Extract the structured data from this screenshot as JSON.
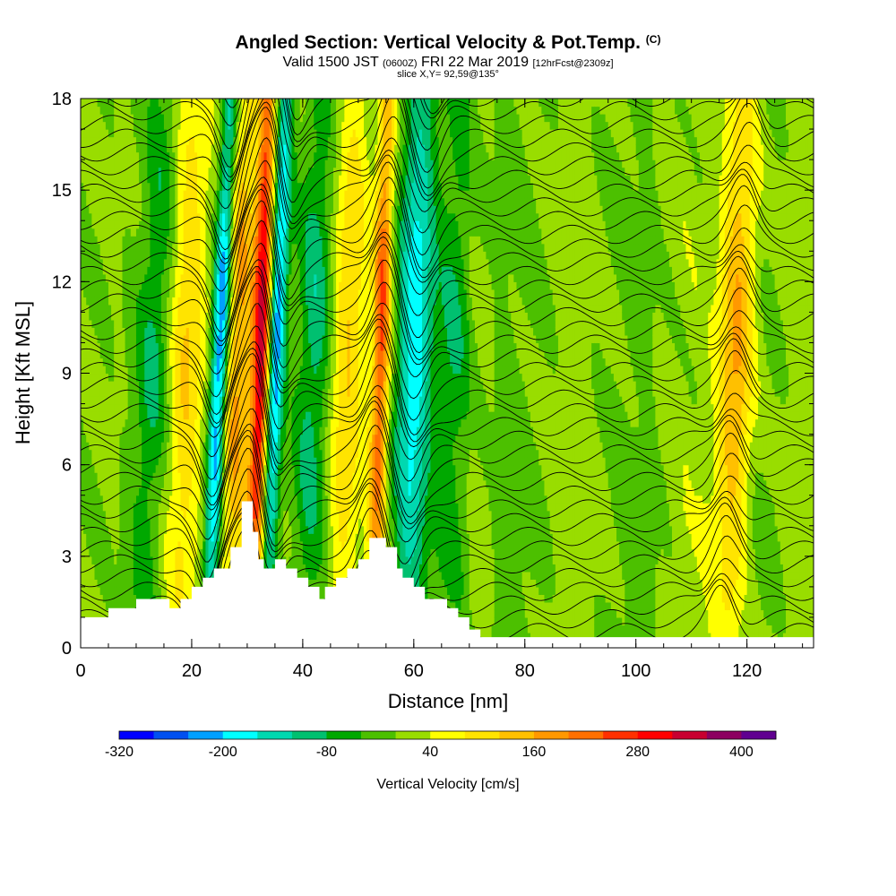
{
  "header": {
    "title_main": "Angled Section: Vertical Velocity & Pot.Temp.",
    "title_mark": "(C)",
    "valid_prefix": "Valid 1500 JST",
    "valid_utc": "(0600Z)",
    "valid_date": "FRI 22 Mar 2019",
    "forecast_note": "[12hrFcst@2309z]",
    "slice_info": "slice X,Y= 92,59@135°"
  },
  "chart_data": {
    "type": "heatmap",
    "title": "Angled Section: Vertical Velocity & Pot.Temp.",
    "xlabel": "Distance [nm]",
    "ylabel": "Height [Kft MSL]",
    "xlim": [
      0,
      132
    ],
    "ylim": [
      0,
      18
    ],
    "x_ticks": [
      0,
      20,
      40,
      60,
      80,
      100,
      120
    ],
    "y_ticks": [
      0,
      3,
      6,
      9,
      12,
      15,
      18
    ],
    "x_minor_step": 5,
    "y_minor_step": 1,
    "colorbar": {
      "title": "Vertical Velocity [cm/s]",
      "tick_labels": [
        -320,
        -200,
        -80,
        40,
        160,
        280,
        400
      ],
      "boundaries": [
        -320,
        -280,
        -240,
        -200,
        -160,
        -120,
        -80,
        -40,
        0,
        40,
        80,
        120,
        160,
        200,
        240,
        280,
        320,
        360,
        400,
        440
      ],
      "colors": [
        "#0000ff",
        "#0050f0",
        "#00a0ff",
        "#00ffff",
        "#00d8b0",
        "#00c070",
        "#00a800",
        "#4cc000",
        "#99dd00",
        "#ffff00",
        "#ffe400",
        "#ffc000",
        "#ff9800",
        "#ff7000",
        "#ff3000",
        "#ff0000",
        "#c80030",
        "#8c0060",
        "#600090"
      ]
    },
    "terrain": [
      [
        0,
        1.0
      ],
      [
        5,
        1.0
      ],
      [
        5,
        1.3
      ],
      [
        10,
        1.3
      ],
      [
        10,
        1.6
      ],
      [
        16,
        1.6
      ],
      [
        16,
        1.3
      ],
      [
        18,
        1.3
      ],
      [
        18,
        1.6
      ],
      [
        20,
        1.6
      ],
      [
        20,
        2.0
      ],
      [
        22,
        2.0
      ],
      [
        22,
        2.3
      ],
      [
        24,
        2.3
      ],
      [
        24,
        2.6
      ],
      [
        27,
        2.6
      ],
      [
        27,
        3.3
      ],
      [
        29,
        3.3
      ],
      [
        29,
        4.8
      ],
      [
        31,
        4.8
      ],
      [
        31,
        3.8
      ],
      [
        32,
        3.8
      ],
      [
        32,
        2.9
      ],
      [
        33,
        2.9
      ],
      [
        33,
        2.6
      ],
      [
        35,
        2.6
      ],
      [
        35,
        2.9
      ],
      [
        37,
        2.9
      ],
      [
        37,
        2.6
      ],
      [
        39,
        2.6
      ],
      [
        39,
        2.3
      ],
      [
        41,
        2.3
      ],
      [
        41,
        2.0
      ],
      [
        43,
        2.0
      ],
      [
        43,
        1.6
      ],
      [
        44,
        1.6
      ],
      [
        44,
        2.0
      ],
      [
        46,
        2.0
      ],
      [
        46,
        2.3
      ],
      [
        48,
        2.3
      ],
      [
        48,
        2.6
      ],
      [
        50,
        2.6
      ],
      [
        50,
        2.9
      ],
      [
        52,
        2.9
      ],
      [
        52,
        3.6
      ],
      [
        55,
        3.6
      ],
      [
        55,
        3.3
      ],
      [
        57,
        3.3
      ],
      [
        57,
        2.6
      ],
      [
        58,
        2.6
      ],
      [
        58,
        2.3
      ],
      [
        60,
        2.3
      ],
      [
        60,
        2.0
      ],
      [
        62,
        2.0
      ],
      [
        62,
        1.6
      ],
      [
        66,
        1.6
      ],
      [
        66,
        1.3
      ],
      [
        68,
        1.3
      ],
      [
        68,
        1.0
      ],
      [
        70,
        1.0
      ],
      [
        70,
        0.6
      ],
      [
        72,
        0.6
      ],
      [
        72,
        0.35
      ],
      [
        132,
        0.35
      ]
    ],
    "field_features": [
      {
        "kind": "updraft",
        "x": 32.5,
        "peak": 330
      },
      {
        "kind": "downdraft",
        "x": 25,
        "peak": -300
      },
      {
        "kind": "downdraft",
        "x": 35,
        "peak": -240
      },
      {
        "kind": "updraft",
        "x": 54,
        "peak": 240
      },
      {
        "kind": "downdraft",
        "x": 60,
        "peak": -200
      },
      {
        "kind": "updraft",
        "x": 28,
        "peak": 170
      },
      {
        "kind": "updraft",
        "x": 19,
        "peak": 120
      },
      {
        "kind": "updraft",
        "x": 48,
        "peak": 120
      },
      {
        "kind": "updraft",
        "x": 118,
        "peak": 190
      },
      {
        "kind": "downdraft",
        "x": 13,
        "peak": -90
      },
      {
        "kind": "downdraft",
        "x": 42,
        "peak": -110
      },
      {
        "kind": "downdraft",
        "x": 67,
        "peak": -80
      }
    ]
  }
}
